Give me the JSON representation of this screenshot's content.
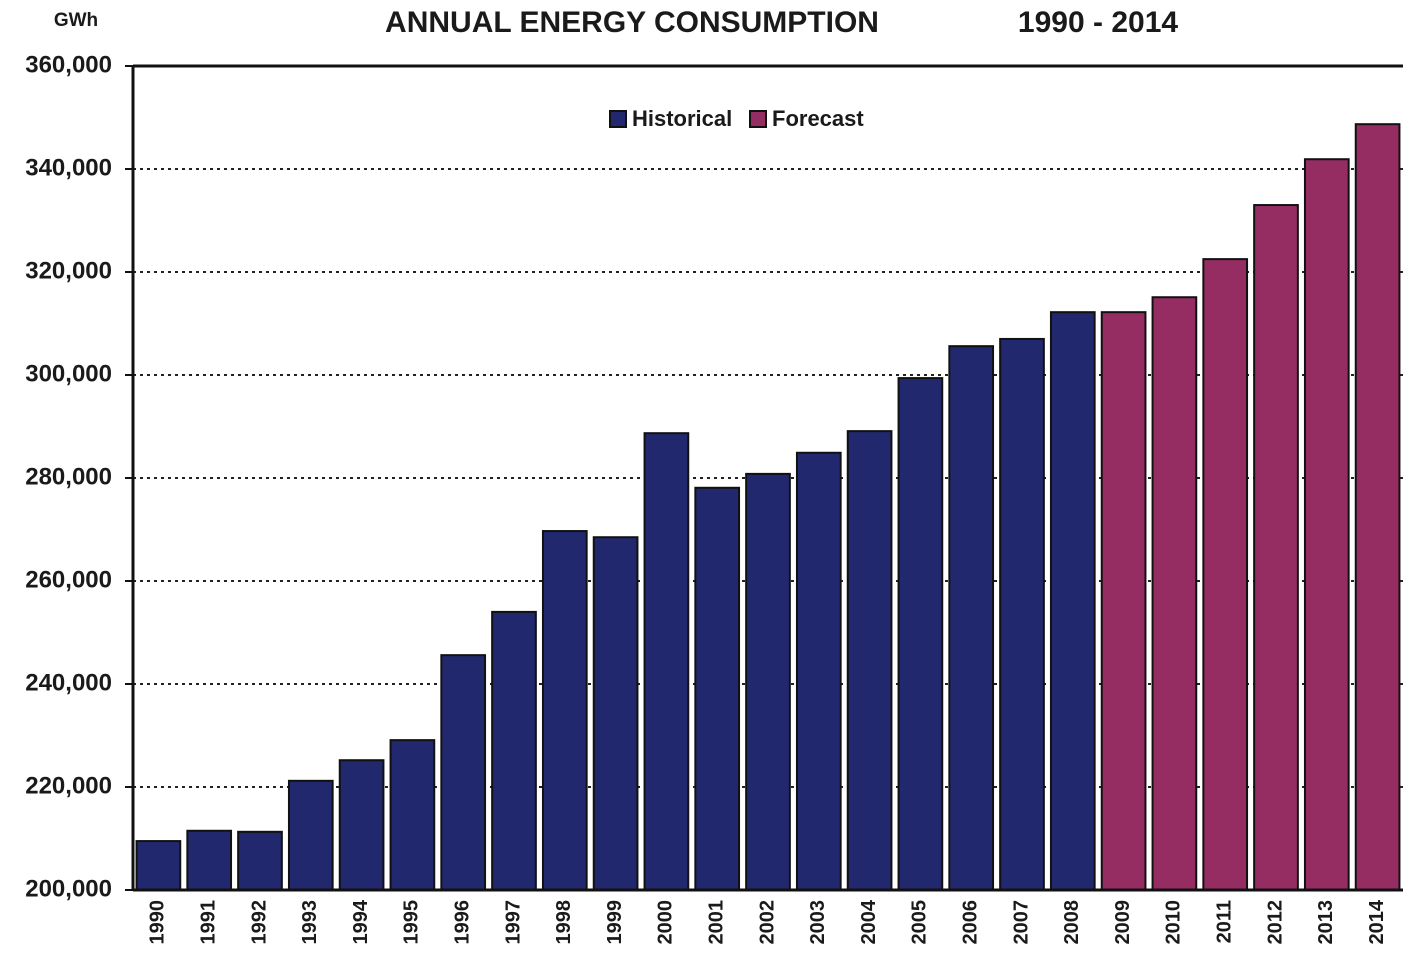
{
  "chart_data": {
    "type": "bar",
    "title": "ANNUAL ENERGY CONSUMPTION",
    "subtitle": "1990 - 2014",
    "y_label": "GWh",
    "categories": [
      "1990",
      "1991",
      "1992",
      "1993",
      "1994",
      "1995",
      "1996",
      "1997",
      "1998",
      "1999",
      "2000",
      "2001",
      "2002",
      "2003",
      "2004",
      "2005",
      "2006",
      "2007",
      "2008",
      "2009",
      "2010",
      "2011",
      "2012",
      "2013",
      "2014"
    ],
    "series": [
      {
        "name": "Historical",
        "color": "#22286e",
        "values": [
          209500,
          211500,
          211300,
          221200,
          225200,
          229100,
          245600,
          254000,
          269700,
          268500,
          288700,
          278100,
          280800,
          284900,
          289100,
          299400,
          305600,
          307000,
          312200,
          null,
          null,
          null,
          null,
          null,
          null
        ]
      },
      {
        "name": "Forecast",
        "color": "#962d62",
        "values": [
          null,
          null,
          null,
          null,
          null,
          null,
          null,
          null,
          null,
          null,
          null,
          null,
          null,
          null,
          null,
          null,
          null,
          null,
          null,
          312200,
          315100,
          322500,
          333000,
          341900,
          348700
        ]
      }
    ],
    "ylim": [
      200000,
      360000
    ],
    "yticks": [
      {
        "value": 200000,
        "label": "200,000"
      },
      {
        "value": 220000,
        "label": "220,000"
      },
      {
        "value": 240000,
        "label": "240,000"
      },
      {
        "value": 260000,
        "label": "260,000"
      },
      {
        "value": 280000,
        "label": "280,000"
      },
      {
        "value": 300000,
        "label": "300,000"
      },
      {
        "value": 320000,
        "label": "320,000"
      },
      {
        "value": 340000,
        "label": "340,000"
      },
      {
        "value": 360000,
        "label": "360,000"
      }
    ],
    "grid": true,
    "legend": "top"
  }
}
